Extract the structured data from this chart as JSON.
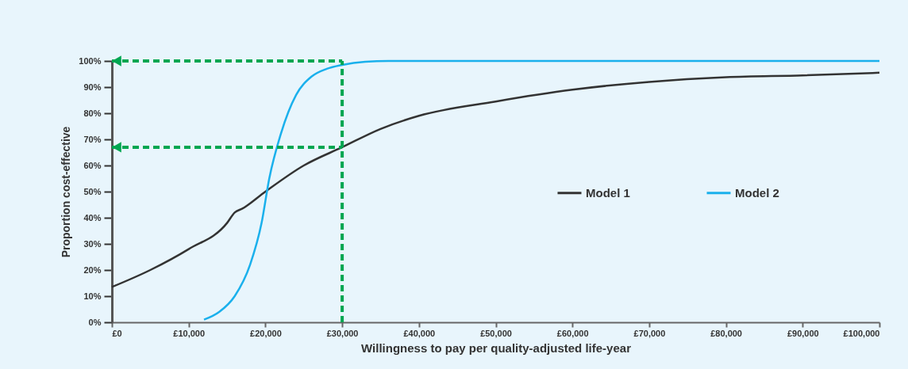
{
  "chart_data": {
    "type": "line",
    "xlabel": "Willingness to pay per quality-adjusted life-year",
    "ylabel": "Proportion cost-effective",
    "xlim": [
      0,
      100000
    ],
    "ylim": [
      0,
      100
    ],
    "xticks": [
      {
        "value": 0,
        "label": "£0"
      },
      {
        "value": 10000,
        "label": "£10,000"
      },
      {
        "value": 20000,
        "label": "£20,000"
      },
      {
        "value": 30000,
        "label": "£30,000"
      },
      {
        "value": 40000,
        "label": "£40,000"
      },
      {
        "value": 50000,
        "label": "£50,000"
      },
      {
        "value": 60000,
        "label": "£60,000"
      },
      {
        "value": 70000,
        "label": "£70,000"
      },
      {
        "value": 80000,
        "label": "£80,000"
      },
      {
        "value": 90000,
        "label": "£90,000"
      },
      {
        "value": 100000,
        "label": "£100,000"
      }
    ],
    "yticks": [
      {
        "value": 0,
        "label": "0%"
      },
      {
        "value": 10,
        "label": "10%"
      },
      {
        "value": 20,
        "label": "20%"
      },
      {
        "value": 30,
        "label": "30%"
      },
      {
        "value": 40,
        "label": "40%"
      },
      {
        "value": 50,
        "label": "50%"
      },
      {
        "value": 60,
        "label": "60%"
      },
      {
        "value": 70,
        "label": "70%"
      },
      {
        "value": 80,
        "label": "80%"
      },
      {
        "value": 90,
        "label": "90%"
      },
      {
        "value": 100,
        "label": "100%"
      }
    ],
    "series": [
      {
        "name": "Model 1",
        "color": "#333333",
        "x": [
          0,
          5000,
          10000,
          15000,
          16000,
          17000,
          20000,
          25000,
          30000,
          35000,
          40000,
          50000,
          60000,
          70000,
          80000,
          90000,
          100000
        ],
        "values": [
          13.5,
          20,
          28,
          38,
          42,
          43.5,
          50,
          60,
          67,
          74,
          79,
          84.5,
          89,
          92,
          93.8,
          94.5,
          95.5
        ]
      },
      {
        "name": "Model 2",
        "color": "#1ab0ec",
        "x": [
          12000,
          14000,
          16000,
          18000,
          19500,
          20500,
          22000,
          24000,
          26000,
          28000,
          30000,
          33000,
          36000,
          100000
        ],
        "values": [
          1,
          4,
          10,
          22,
          38,
          55,
          72,
          87,
          94,
          97,
          98.5,
          99.7,
          100,
          100
        ]
      }
    ],
    "ref_lines": [
      {
        "axis": "x",
        "value": 30000,
        "color": "#00a651",
        "line_style": "dashed"
      },
      {
        "axis": "y",
        "value": 100,
        "color": "#00a651",
        "line_style": "dashed"
      },
      {
        "axis": "y",
        "value": 67,
        "color": "#00a651",
        "line_style": "dashed"
      }
    ],
    "legend": "right",
    "grid": false,
    "marker": "none",
    "line_style": "solid"
  }
}
